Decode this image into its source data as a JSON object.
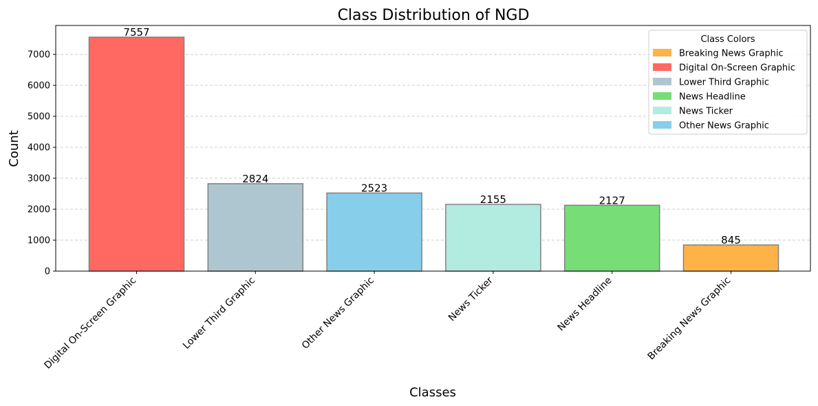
{
  "chart_data": {
    "type": "bar",
    "title": "Class Distribution of NGD",
    "xlabel": "Classes",
    "ylabel": "Count",
    "categories": [
      "Digital On-Screen Graphic",
      "Lower Third Graphic",
      "Other News Graphic",
      "News Ticker",
      "News Headline",
      "Breaking News Graphic"
    ],
    "values": [
      7557,
      2824,
      2523,
      2155,
      2127,
      845
    ],
    "bar_colors": [
      "#ff6961",
      "#aec6cf",
      "#87ceeb",
      "#b2ebe0",
      "#77dd77",
      "#ffb347"
    ],
    "bar_edge_color": "#808080",
    "ylim": [
      0,
      7935
    ],
    "yticks": [
      0,
      1000,
      2000,
      3000,
      4000,
      5000,
      6000,
      7000
    ],
    "grid": "y, dashed",
    "legend": {
      "title": "Class Colors",
      "placement": "top-right",
      "entries": [
        {
          "label": "Breaking News Graphic",
          "color": "#ffb347"
        },
        {
          "label": "Digital On-Screen Graphic",
          "color": "#ff6961"
        },
        {
          "label": "Lower Third Graphic",
          "color": "#aec6cf"
        },
        {
          "label": "News Headline",
          "color": "#77dd77"
        },
        {
          "label": "News Ticker",
          "color": "#b2ebe0"
        },
        {
          "label": "Other News Graphic",
          "color": "#87ceeb"
        }
      ]
    }
  }
}
